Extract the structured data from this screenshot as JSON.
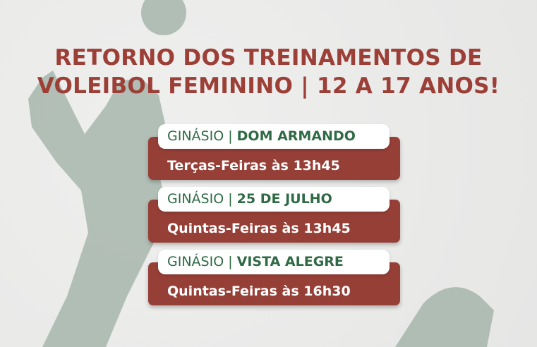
{
  "title": {
    "line1": "RETORNO DOS TREINAMENTOS DE",
    "line2": "VOLEIBOL FEMININO | 12 A 17 ANOS!"
  },
  "sessions": [
    {
      "prefix": "GINÁSIO",
      "separator": "|",
      "venue": "DOM ARMANDO",
      "schedule": "Terças-Feiras às 13h45"
    },
    {
      "prefix": "GINÁSIO",
      "separator": "|",
      "venue": "25 DE JULHO",
      "schedule": "Quintas-Feiras às 13h45"
    },
    {
      "prefix": "GINÁSIO",
      "separator": "|",
      "venue": "VISTA ALEGRE",
      "schedule": "Quintas-Feiras às 16h30"
    }
  ],
  "colors": {
    "title": "#9b3f37",
    "card": "#963f37",
    "venue": "#2f6a45",
    "silhouette": "#a3b3a9"
  }
}
